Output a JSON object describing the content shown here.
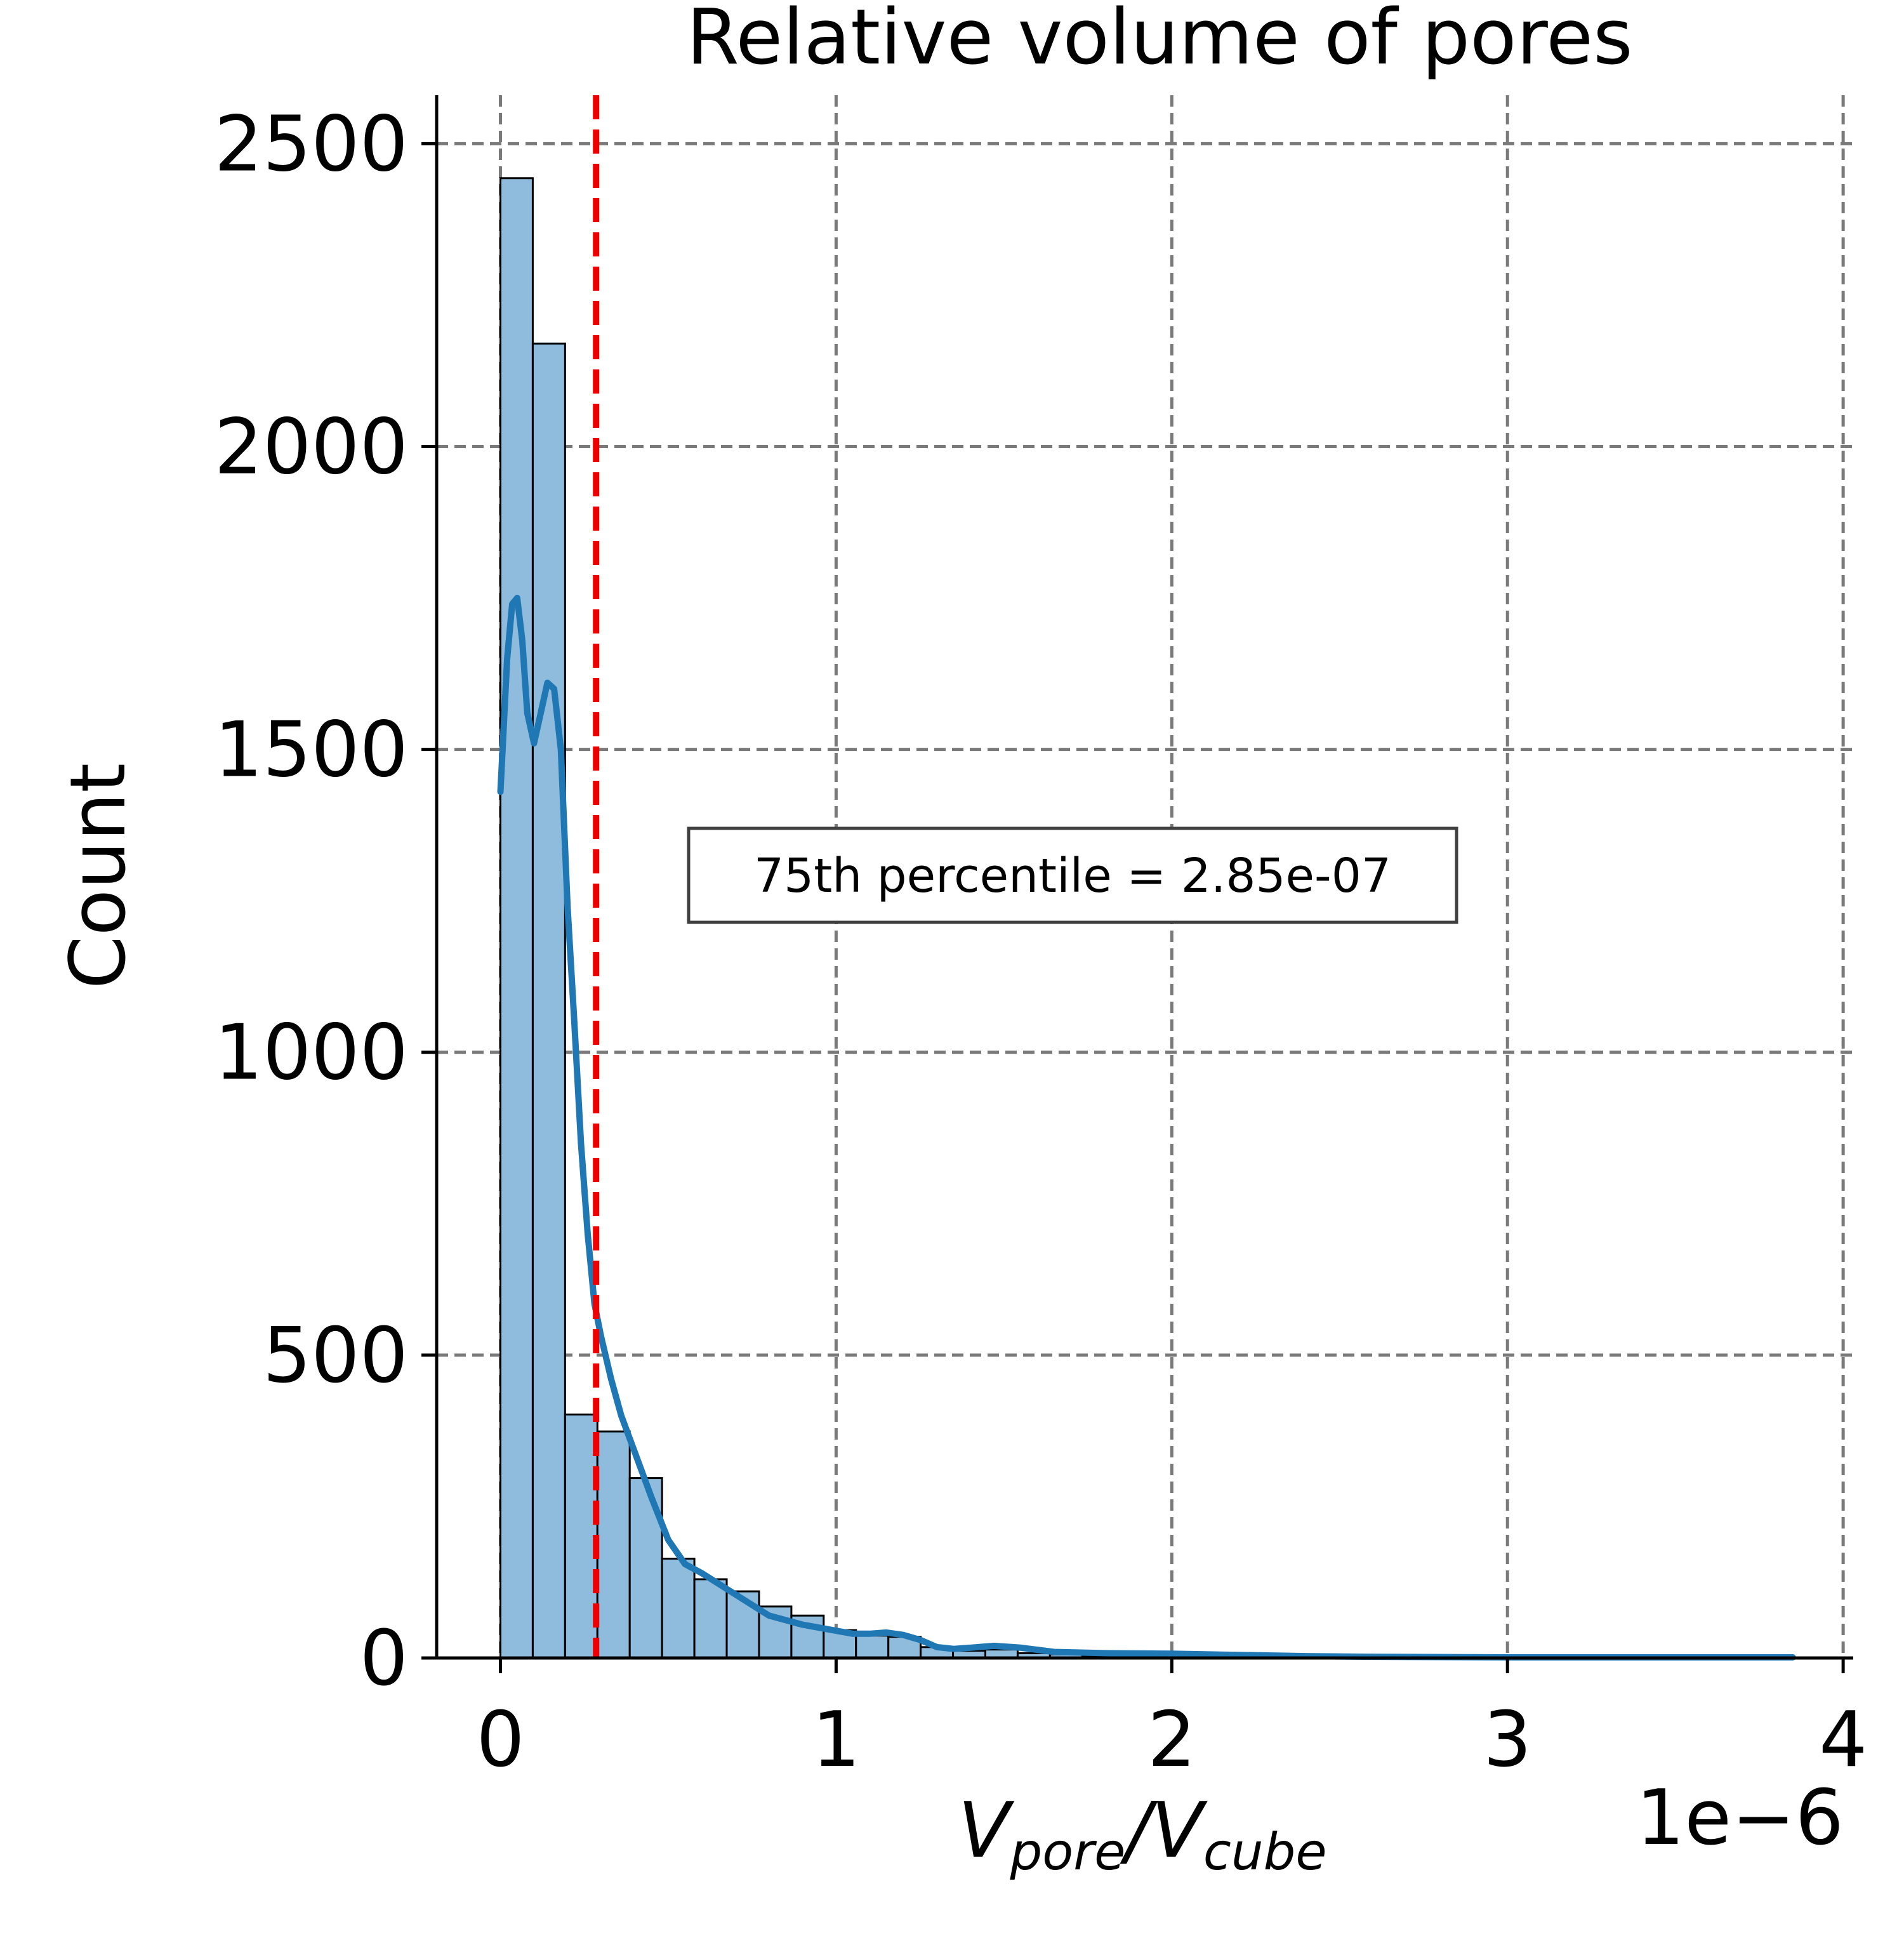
{
  "chart_data": {
    "type": "bar",
    "title": "Relative volume of pores",
    "ylabel": "Count",
    "xlabel_main_1": "V",
    "xlabel_sub_1": "pore",
    "xlabel_slash": "/",
    "xlabel_main_2": "V",
    "xlabel_sub_2": "cube",
    "x_offset_text": "1e−6",
    "x_scale": 1e-06,
    "xlim": [
      -0.19,
      4.03
    ],
    "ylim": [
      0,
      2580
    ],
    "x_ticks": [
      0,
      1,
      2,
      3,
      4
    ],
    "x_tick_labels": [
      "0",
      "1",
      "2",
      "3",
      "4"
    ],
    "y_ticks": [
      0,
      500,
      1000,
      1500,
      2000,
      2500
    ],
    "y_tick_labels": [
      "0",
      "500",
      "1000",
      "1500",
      "2000",
      "2500"
    ],
    "grid": true,
    "bin_width": 0.0963,
    "bin_edges_start": 0,
    "counts": [
      2443,
      2170,
      402,
      374,
      297,
      164,
      130,
      110,
      85,
      70,
      46,
      37,
      35,
      18,
      12,
      14,
      8,
      6,
      4,
      4,
      4,
      3,
      3,
      2,
      2,
      1,
      1,
      1,
      1,
      1,
      1,
      1,
      1,
      0,
      1,
      0,
      1,
      0,
      0,
      1
    ],
    "bar_color": "#8fbbdc",
    "kde": {
      "color": "#1f77b4",
      "x": [
        0.0,
        0.02,
        0.035,
        0.05,
        0.065,
        0.08,
        0.1,
        0.12,
        0.14,
        0.16,
        0.18,
        0.2,
        0.22,
        0.24,
        0.26,
        0.28,
        0.3,
        0.33,
        0.36,
        0.4,
        0.45,
        0.5,
        0.55,
        0.6,
        0.7,
        0.8,
        0.9,
        1.0,
        1.05,
        1.1,
        1.15,
        1.2,
        1.25,
        1.3,
        1.35,
        1.4,
        1.47,
        1.55,
        1.65,
        1.8,
        2.0,
        2.2,
        2.4,
        2.6,
        3.0,
        3.4,
        3.85
      ],
      "y": [
        1430,
        1650,
        1740,
        1750,
        1680,
        1560,
        1510,
        1560,
        1610,
        1600,
        1500,
        1240,
        1050,
        850,
        700,
        585,
        530,
        460,
        400,
        340,
        265,
        195,
        155,
        140,
        105,
        70,
        55,
        45,
        40,
        40,
        42,
        38,
        30,
        18,
        15,
        17,
        20,
        17,
        10,
        8,
        7,
        5,
        3,
        2,
        1,
        1,
        1
      ]
    },
    "percentile_line": {
      "x": 0.285,
      "color": "#ee0000",
      "label": "75th percentile = 2.85e-07"
    }
  }
}
